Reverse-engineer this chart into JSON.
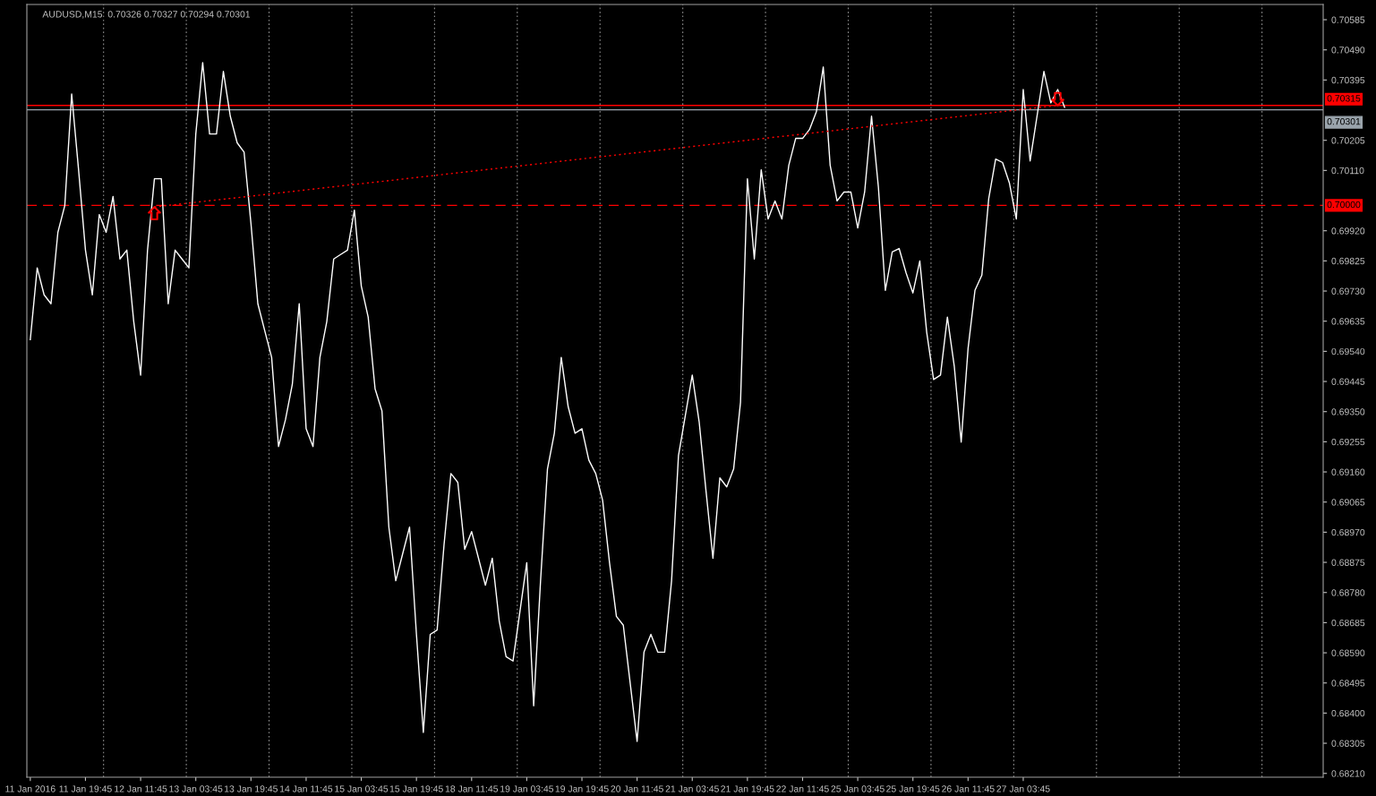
{
  "chart_data": {
    "type": "line",
    "title": "AUDUSD,M15  0.70326 0.70327 0.70294 0.70301",
    "categories": [
      "11 Jan 2016",
      null,
      null,
      null,
      null,
      null,
      null,
      null,
      "11 Jan 19:45",
      null,
      null,
      null,
      null,
      null,
      null,
      null,
      "12 Jan 11:45",
      null,
      null,
      null,
      null,
      null,
      null,
      null,
      "13 Jan 03:45",
      null,
      null,
      null,
      null,
      null,
      null,
      null,
      "13 Jan 19:45",
      null,
      null,
      null,
      null,
      null,
      null,
      null,
      "14 Jan 11:45",
      null,
      null,
      null,
      null,
      null,
      null,
      null,
      "15 Jan 03:45",
      null,
      null,
      null,
      null,
      null,
      null,
      null,
      "15 Jan 19:45",
      null,
      null,
      null,
      null,
      null,
      null,
      null,
      "18 Jan 11:45",
      null,
      null,
      null,
      null,
      null,
      null,
      null,
      "19 Jan 03:45",
      null,
      null,
      null,
      null,
      null,
      null,
      null,
      "19 Jan 19:45",
      null,
      null,
      null,
      null,
      null,
      null,
      null,
      "20 Jan 11:45",
      null,
      null,
      null,
      null,
      null,
      null,
      null,
      "21 Jan 03:45",
      null,
      null,
      null,
      null,
      null,
      null,
      null,
      "21 Jan 19:45",
      null,
      null,
      null,
      null,
      null,
      null,
      null,
      "22 Jan 11:45",
      null,
      null,
      null,
      null,
      null,
      null,
      null,
      "25 Jan 03:45",
      null,
      null,
      null,
      null,
      null,
      null,
      null,
      "25 Jan 19:45",
      null,
      null,
      null,
      null,
      null,
      null,
      null,
      "26 Jan 11:45",
      null,
      null,
      null,
      null,
      null,
      null,
      null,
      "27 Jan 03:45",
      null,
      null,
      null,
      null,
      null,
      null,
      null,
      null,
      null,
      null,
      null,
      null,
      null,
      null,
      null,
      null,
      null,
      null,
      null,
      null,
      null,
      null,
      null,
      null,
      null,
      null,
      null,
      null,
      null,
      null,
      null,
      null,
      null,
      null,
      null,
      null,
      null,
      null,
      null,
      null,
      null,
      null,
      null
    ],
    "series": [
      {
        "color": "#ffffff",
        "values": [
          0.69577,
          0.69803,
          0.69718,
          0.6969,
          0.69915,
          0.69999,
          0.70351,
          0.70112,
          0.69859,
          0.69718,
          0.69971,
          0.69915,
          0.70028,
          0.69831,
          0.69859,
          0.69634,
          0.69465,
          0.69859,
          0.70084,
          0.70084,
          0.6969,
          0.69859,
          0.69831,
          0.69803,
          0.70225,
          0.7045,
          0.70225,
          0.70225,
          0.70422,
          0.70281,
          0.70197,
          0.70168,
          0.69943,
          0.6969,
          0.69605,
          0.69521,
          0.6924,
          0.69324,
          0.69436,
          0.6969,
          0.69296,
          0.6924,
          0.69521,
          0.69634,
          0.69831,
          0.69845,
          0.69859,
          0.69985,
          0.69746,
          0.69648,
          0.69422,
          0.69352,
          0.68986,
          0.68817,
          0.68902,
          0.68986,
          0.68648,
          0.68339,
          0.68648,
          0.68662,
          0.6893,
          0.69155,
          0.69127,
          0.68916,
          0.68972,
          0.68888,
          0.68803,
          0.68888,
          0.68691,
          0.68578,
          0.68564,
          0.68719,
          0.68874,
          0.68423,
          0.68817,
          0.69169,
          0.69282,
          0.69521,
          0.69366,
          0.69282,
          0.69296,
          0.69197,
          0.69155,
          0.69071,
          0.68874,
          0.68705,
          0.68677,
          0.68494,
          0.68311,
          0.68592,
          0.68648,
          0.68592,
          0.68592,
          0.68817,
          0.69211,
          0.69338,
          0.69465,
          0.69318,
          0.69099,
          0.68888,
          0.69141,
          0.69113,
          0.69169,
          0.6938,
          0.70084,
          0.69831,
          0.70112,
          0.69957,
          0.70014,
          0.69957,
          0.70126,
          0.70211,
          0.70211,
          0.70239,
          0.70295,
          0.70436,
          0.70126,
          0.70014,
          0.70042,
          0.70042,
          0.69929,
          0.70042,
          0.70281,
          0.70056,
          0.69732,
          0.69853,
          0.69864,
          0.69788,
          0.69724,
          0.69825,
          0.696,
          0.69451,
          0.69465,
          0.69648,
          0.69493,
          0.69254,
          0.69549,
          0.69732,
          0.6978,
          0.70022,
          0.70146,
          0.70135,
          0.7007,
          0.69957,
          0.70365,
          0.7014,
          0.70281,
          0.70422,
          0.70323,
          0.70365,
          0.70309,
          null,
          null,
          null,
          null,
          null,
          null,
          null,
          null,
          null,
          null,
          null,
          null,
          null,
          null,
          null,
          null,
          null,
          null,
          null,
          null,
          null,
          null,
          null,
          null,
          null,
          null,
          null,
          null,
          null,
          null,
          null,
          null,
          null,
          null,
          null,
          null,
          null
        ]
      },
      {
        "type": "line",
        "color": "#ff0000",
        "line_style": "dotted",
        "values": [
          null,
          null,
          null,
          null,
          null,
          null,
          null,
          null,
          null,
          null,
          null,
          null,
          null,
          null,
          null,
          null,
          null,
          null,
          0.69995,
          null,
          null,
          null,
          null,
          null,
          null,
          null,
          null,
          null,
          null,
          null,
          null,
          null,
          null,
          null,
          null,
          null,
          null,
          null,
          null,
          null,
          null,
          null,
          null,
          null,
          null,
          null,
          null,
          null,
          null,
          null,
          null,
          null,
          null,
          null,
          null,
          null,
          null,
          null,
          null,
          null,
          null,
          null,
          null,
          null,
          null,
          null,
          null,
          null,
          null,
          null,
          null,
          null,
          null,
          null,
          null,
          null,
          null,
          null,
          null,
          null,
          null,
          null,
          null,
          null,
          null,
          null,
          null,
          null,
          null,
          null,
          null,
          null,
          null,
          null,
          null,
          null,
          null,
          null,
          null,
          null,
          null,
          null,
          null,
          null,
          null,
          null,
          null,
          null,
          null,
          null,
          null,
          null,
          null,
          null,
          null,
          null,
          null,
          null,
          null,
          null,
          null,
          null,
          null,
          null,
          null,
          null,
          null,
          null,
          null,
          null,
          null,
          null,
          null,
          null,
          null,
          null,
          null,
          null,
          null,
          null,
          null,
          null,
          null,
          null,
          null,
          null,
          null,
          null,
          null,
          0.70315,
          null,
          null,
          null,
          null,
          null,
          null,
          null,
          null,
          null,
          null,
          null,
          null,
          null,
          null,
          null,
          null,
          null,
          null,
          null,
          null,
          null,
          null,
          null,
          null,
          null,
          null,
          null,
          null,
          null,
          null,
          null,
          null,
          null,
          null,
          null,
          null,
          null,
          null
        ]
      }
    ],
    "ylim": [
      0.68198,
      0.70633
    ],
    "yticks": [
      {
        "value": 0.70585,
        "label": "0.70585"
      },
      {
        "value": 0.7049,
        "label": "0.70490"
      },
      {
        "value": 0.70395,
        "label": "0.70395"
      },
      {
        "value": 0.70205,
        "label": "0.70205"
      },
      {
        "value": 0.7011,
        "label": "0.70110"
      },
      {
        "value": 0.6992,
        "label": "0.69920"
      },
      {
        "value": 0.69825,
        "label": "0.69825"
      },
      {
        "value": 0.6973,
        "label": "0.69730"
      },
      {
        "value": 0.69635,
        "label": "0.69635"
      },
      {
        "value": 0.6954,
        "label": "0.69540"
      },
      {
        "value": 0.69445,
        "label": "0.69445"
      },
      {
        "value": 0.6935,
        "label": "0.69350"
      },
      {
        "value": 0.69255,
        "label": "0.69255"
      },
      {
        "value": 0.6916,
        "label": "0.69160"
      },
      {
        "value": 0.69065,
        "label": "0.69065"
      },
      {
        "value": 0.6897,
        "label": "0.68970"
      },
      {
        "value": 0.68875,
        "label": "0.68875"
      },
      {
        "value": 0.6878,
        "label": "0.68780"
      },
      {
        "value": 0.68685,
        "label": "0.68685"
      },
      {
        "value": 0.6859,
        "label": "0.68590"
      },
      {
        "value": 0.68495,
        "label": "0.68495"
      },
      {
        "value": 0.684,
        "label": "0.68400"
      },
      {
        "value": 0.68305,
        "label": "0.68305"
      },
      {
        "value": 0.6821,
        "label": "0.68210"
      }
    ],
    "ref_lines": [
      {
        "axis": "y",
        "value": 0.70315,
        "label": "0.70315",
        "color": "#ff0000",
        "line_style": "solid"
      },
      {
        "axis": "y",
        "value": 0.70301,
        "label": "0.70301",
        "color": "#9aa4ac",
        "line_style": "solid"
      },
      {
        "axis": "y",
        "value": 0.7,
        "label": "0.70000",
        "color": "#ff0000",
        "line_style": "dashed"
      }
    ]
  }
}
